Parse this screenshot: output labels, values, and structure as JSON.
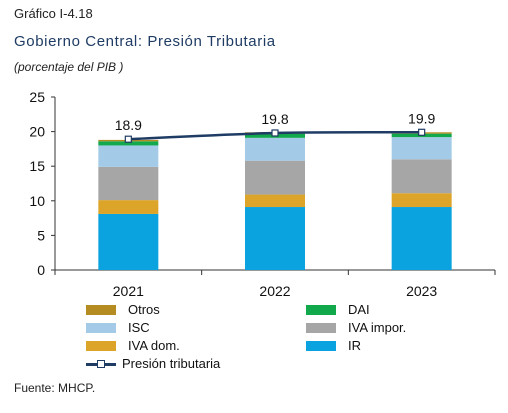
{
  "header": {
    "label": "Gráfico I-4.18",
    "title": "Gobierno Central: Presión Tributaria",
    "subtitle": "(porcentaje del PIB )"
  },
  "source": "Fuente: MHCP.",
  "chart_data": {
    "type": "bar",
    "stacked": true,
    "categories": [
      "2021",
      "2022",
      "2023"
    ],
    "ylim": [
      0,
      25
    ],
    "yticks": [
      0,
      5,
      10,
      15,
      20,
      25
    ],
    "series": [
      {
        "name": "IR",
        "color": "#0aa3e0",
        "values": [
          8.1,
          9.1,
          9.1
        ]
      },
      {
        "name": "IVA dom.",
        "color": "#dca52a",
        "values": [
          2.0,
          1.8,
          2.0
        ]
      },
      {
        "name": "IVA impor.",
        "color": "#a6a6a6",
        "values": [
          4.8,
          4.9,
          4.9
        ]
      },
      {
        "name": "ISC",
        "color": "#a3cbe8",
        "values": [
          3.1,
          3.3,
          3.2
        ]
      },
      {
        "name": "DAI",
        "color": "#12a84c",
        "values": [
          0.6,
          0.6,
          0.5
        ]
      },
      {
        "name": "Otros",
        "color": "#b58c22",
        "values": [
          0.2,
          0.2,
          0.2
        ]
      }
    ],
    "line": {
      "name": "Presión tributaria",
      "color": "#1f3c64",
      "values": [
        18.9,
        19.8,
        19.9
      ],
      "labels": [
        "18.9",
        "19.8",
        "19.9"
      ]
    },
    "legend": {
      "placement": "bottom",
      "items": [
        {
          "name": "Otros",
          "color": "#b58c22"
        },
        {
          "name": "DAI",
          "color": "#12a84c"
        },
        {
          "name": "ISC",
          "color": "#a3cbe8"
        },
        {
          "name": "IVA impor.",
          "color": "#a6a6a6"
        },
        {
          "name": "IVA dom.",
          "color": "#dca52a"
        },
        {
          "name": "IR",
          "color": "#0aa3e0"
        },
        {
          "name": "Presión tributaria",
          "color": "#1f3c64"
        }
      ]
    }
  }
}
